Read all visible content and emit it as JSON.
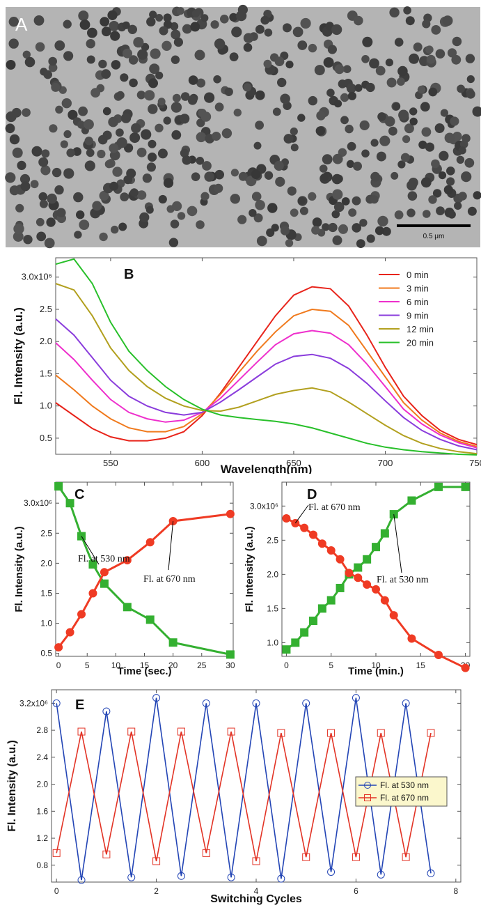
{
  "micrograph": {
    "label": "A",
    "scale_bar_label": "0.5 μm"
  },
  "chart_data": [
    {
      "panel": "B",
      "type": "line",
      "xlabel": "Wavelength(nm)",
      "ylabel": "Fl. Intensity (a.u.)",
      "xlim": [
        520,
        750
      ],
      "ylim": [
        0.25,
        3.3
      ],
      "xticks": [
        550,
        600,
        650,
        700,
        750
      ],
      "yticks": [
        0.5,
        1.0,
        1.5,
        2.0,
        2.5,
        3.0
      ],
      "ytick_labels": [
        "0.5",
        "1.0",
        "1.5",
        "2.0",
        "2.5",
        "3.0x10⁶"
      ],
      "legend_position": "top-right",
      "x": [
        520,
        530,
        540,
        550,
        560,
        570,
        580,
        590,
        600,
        610,
        620,
        630,
        640,
        650,
        660,
        670,
        680,
        690,
        700,
        710,
        720,
        730,
        740,
        750
      ],
      "series": [
        {
          "name": "0 min",
          "color": "#e8241b",
          "values": [
            1.05,
            0.85,
            0.65,
            0.52,
            0.46,
            0.46,
            0.5,
            0.6,
            0.85,
            1.2,
            1.6,
            2.0,
            2.4,
            2.72,
            2.85,
            2.82,
            2.55,
            2.1,
            1.6,
            1.15,
            0.85,
            0.62,
            0.48,
            0.4
          ]
        },
        {
          "name": "3 min",
          "color": "#f07a1d",
          "values": [
            1.48,
            1.25,
            1.0,
            0.8,
            0.66,
            0.6,
            0.6,
            0.68,
            0.88,
            1.18,
            1.52,
            1.85,
            2.15,
            2.4,
            2.5,
            2.47,
            2.25,
            1.85,
            1.45,
            1.05,
            0.78,
            0.58,
            0.45,
            0.37
          ]
        },
        {
          "name": "6 min",
          "color": "#ee2fcc",
          "values": [
            1.98,
            1.72,
            1.4,
            1.1,
            0.9,
            0.8,
            0.75,
            0.78,
            0.9,
            1.12,
            1.4,
            1.68,
            1.95,
            2.12,
            2.17,
            2.13,
            1.95,
            1.65,
            1.3,
            0.95,
            0.72,
            0.55,
            0.43,
            0.35
          ]
        },
        {
          "name": "9 min",
          "color": "#8a3cdc",
          "values": [
            2.35,
            2.1,
            1.75,
            1.4,
            1.15,
            1.0,
            0.9,
            0.86,
            0.9,
            1.06,
            1.25,
            1.45,
            1.65,
            1.77,
            1.8,
            1.74,
            1.58,
            1.35,
            1.08,
            0.82,
            0.62,
            0.48,
            0.38,
            0.32
          ]
        },
        {
          "name": "12 min",
          "color": "#b2a01f",
          "values": [
            2.9,
            2.8,
            2.4,
            1.9,
            1.55,
            1.3,
            1.12,
            1.0,
            0.93,
            0.92,
            0.98,
            1.08,
            1.18,
            1.24,
            1.28,
            1.22,
            1.06,
            0.88,
            0.7,
            0.54,
            0.42,
            0.34,
            0.29,
            0.26
          ]
        },
        {
          "name": "20 min",
          "color": "#28c02a",
          "values": [
            3.2,
            3.28,
            2.9,
            2.3,
            1.85,
            1.55,
            1.3,
            1.1,
            0.95,
            0.86,
            0.82,
            0.79,
            0.76,
            0.72,
            0.66,
            0.58,
            0.5,
            0.42,
            0.36,
            0.32,
            0.29,
            0.27,
            0.25,
            0.24
          ]
        }
      ]
    },
    {
      "panel": "C",
      "type": "line",
      "xlabel": "Time (sec.)",
      "ylabel": "Fl. Intensity (a.u.)",
      "xlim": [
        -0.5,
        30.5
      ],
      "ylim": [
        0.45,
        3.35
      ],
      "xticks": [
        0,
        5,
        10,
        15,
        20,
        25,
        30
      ],
      "yticks": [
        0.5,
        1.0,
        1.5,
        2.0,
        2.5,
        3.0
      ],
      "ytick_labels": [
        "0.5",
        "1.0",
        "1.5",
        "2.0",
        "2.5",
        "3.0x10⁶"
      ],
      "series": [
        {
          "name": "Fl. at 530 nm",
          "color": "#34b031",
          "marker": "square",
          "x": [
            0,
            2,
            4,
            6,
            8,
            12,
            16,
            20,
            30
          ],
          "values": [
            3.28,
            3.0,
            2.45,
            1.98,
            1.66,
            1.27,
            1.06,
            0.68,
            0.48
          ]
        },
        {
          "name": "Fl. at 670 nm",
          "color": "#ef3b24",
          "marker": "circle",
          "x": [
            0,
            2,
            4,
            6,
            8,
            12,
            16,
            20,
            30
          ],
          "values": [
            0.6,
            0.85,
            1.15,
            1.5,
            1.85,
            2.05,
            2.35,
            2.7,
            2.82
          ]
        }
      ],
      "annotations": [
        {
          "text": "Fl. at 530 nm",
          "points_to": [
            4,
            2.45
          ]
        },
        {
          "text": "Fl. at 670 nm",
          "points_to": [
            20,
            2.7
          ]
        }
      ]
    },
    {
      "panel": "D",
      "type": "line",
      "xlabel": "Time (min.)",
      "ylabel": "Fl. Intensity (a.u.)",
      "xlim": [
        -0.5,
        20.5
      ],
      "ylim": [
        0.8,
        3.35
      ],
      "xticks": [
        0,
        5,
        10,
        15,
        20
      ],
      "yticks": [
        1.0,
        1.5,
        2.0,
        2.5,
        3.0
      ],
      "ytick_labels": [
        "1.0",
        "1.5",
        "2.0",
        "2.5",
        "3.0x10⁶"
      ],
      "series": [
        {
          "name": "Fl. at 530 nm",
          "color": "#34b031",
          "marker": "square",
          "x": [
            0,
            1,
            2,
            3,
            4,
            5,
            6,
            7,
            8,
            9,
            10,
            11,
            12,
            14,
            17,
            20
          ],
          "values": [
            0.9,
            1.0,
            1.15,
            1.32,
            1.5,
            1.62,
            1.8,
            2.0,
            2.1,
            2.22,
            2.4,
            2.6,
            2.88,
            3.08,
            3.28,
            3.28
          ]
        },
        {
          "name": "Fl. at 670 nm",
          "color": "#ef3b24",
          "marker": "circle",
          "x": [
            0,
            1,
            2,
            3,
            4,
            5,
            6,
            7,
            8,
            9,
            10,
            11,
            12,
            14,
            17,
            20
          ],
          "values": [
            2.82,
            2.75,
            2.68,
            2.58,
            2.45,
            2.35,
            2.22,
            2.02,
            1.95,
            1.85,
            1.78,
            1.62,
            1.4,
            1.06,
            0.82,
            0.63
          ]
        }
      ],
      "annotations": [
        {
          "text": "Fl. at 670 nm",
          "points_to": [
            1,
            2.75
          ]
        },
        {
          "text": "Fl. at 530 nm",
          "points_to": [
            12,
            2.88
          ]
        }
      ]
    },
    {
      "panel": "E",
      "type": "line",
      "xlabel": "Switching Cycles",
      "ylabel": "Fl. Intensity (a.u.)",
      "xlim": [
        -0.1,
        8.1
      ],
      "ylim": [
        0.55,
        3.4
      ],
      "xticks": [
        0,
        2,
        4,
        6,
        8
      ],
      "yticks": [
        0.8,
        1.2,
        1.6,
        2.0,
        2.4,
        2.8,
        3.2
      ],
      "ytick_labels": [
        "0.8",
        "1.2",
        "1.6",
        "2.0",
        "2.4",
        "2.8",
        "3.2x10⁶"
      ],
      "legend_position": "center-right",
      "x": [
        0,
        0.5,
        1,
        1.5,
        2,
        2.5,
        3,
        3.5,
        4,
        4.5,
        5,
        5.5,
        6,
        6.5,
        7,
        7.5
      ],
      "series": [
        {
          "name": "Fl. at 530 nm",
          "color": "#2345b5",
          "marker": "circle",
          "values": [
            3.2,
            0.58,
            3.08,
            0.62,
            3.28,
            0.64,
            3.2,
            0.62,
            3.2,
            0.6,
            3.2,
            0.7,
            3.28,
            0.66,
            3.2,
            0.68
          ]
        },
        {
          "name": "Fl. at 670 nm",
          "color": "#e23325",
          "marker": "square",
          "values": [
            0.98,
            2.78,
            0.96,
            2.78,
            0.86,
            2.78,
            0.98,
            2.78,
            0.86,
            2.76,
            0.92,
            2.76,
            0.92,
            2.76,
            0.92,
            2.76
          ]
        }
      ]
    }
  ]
}
